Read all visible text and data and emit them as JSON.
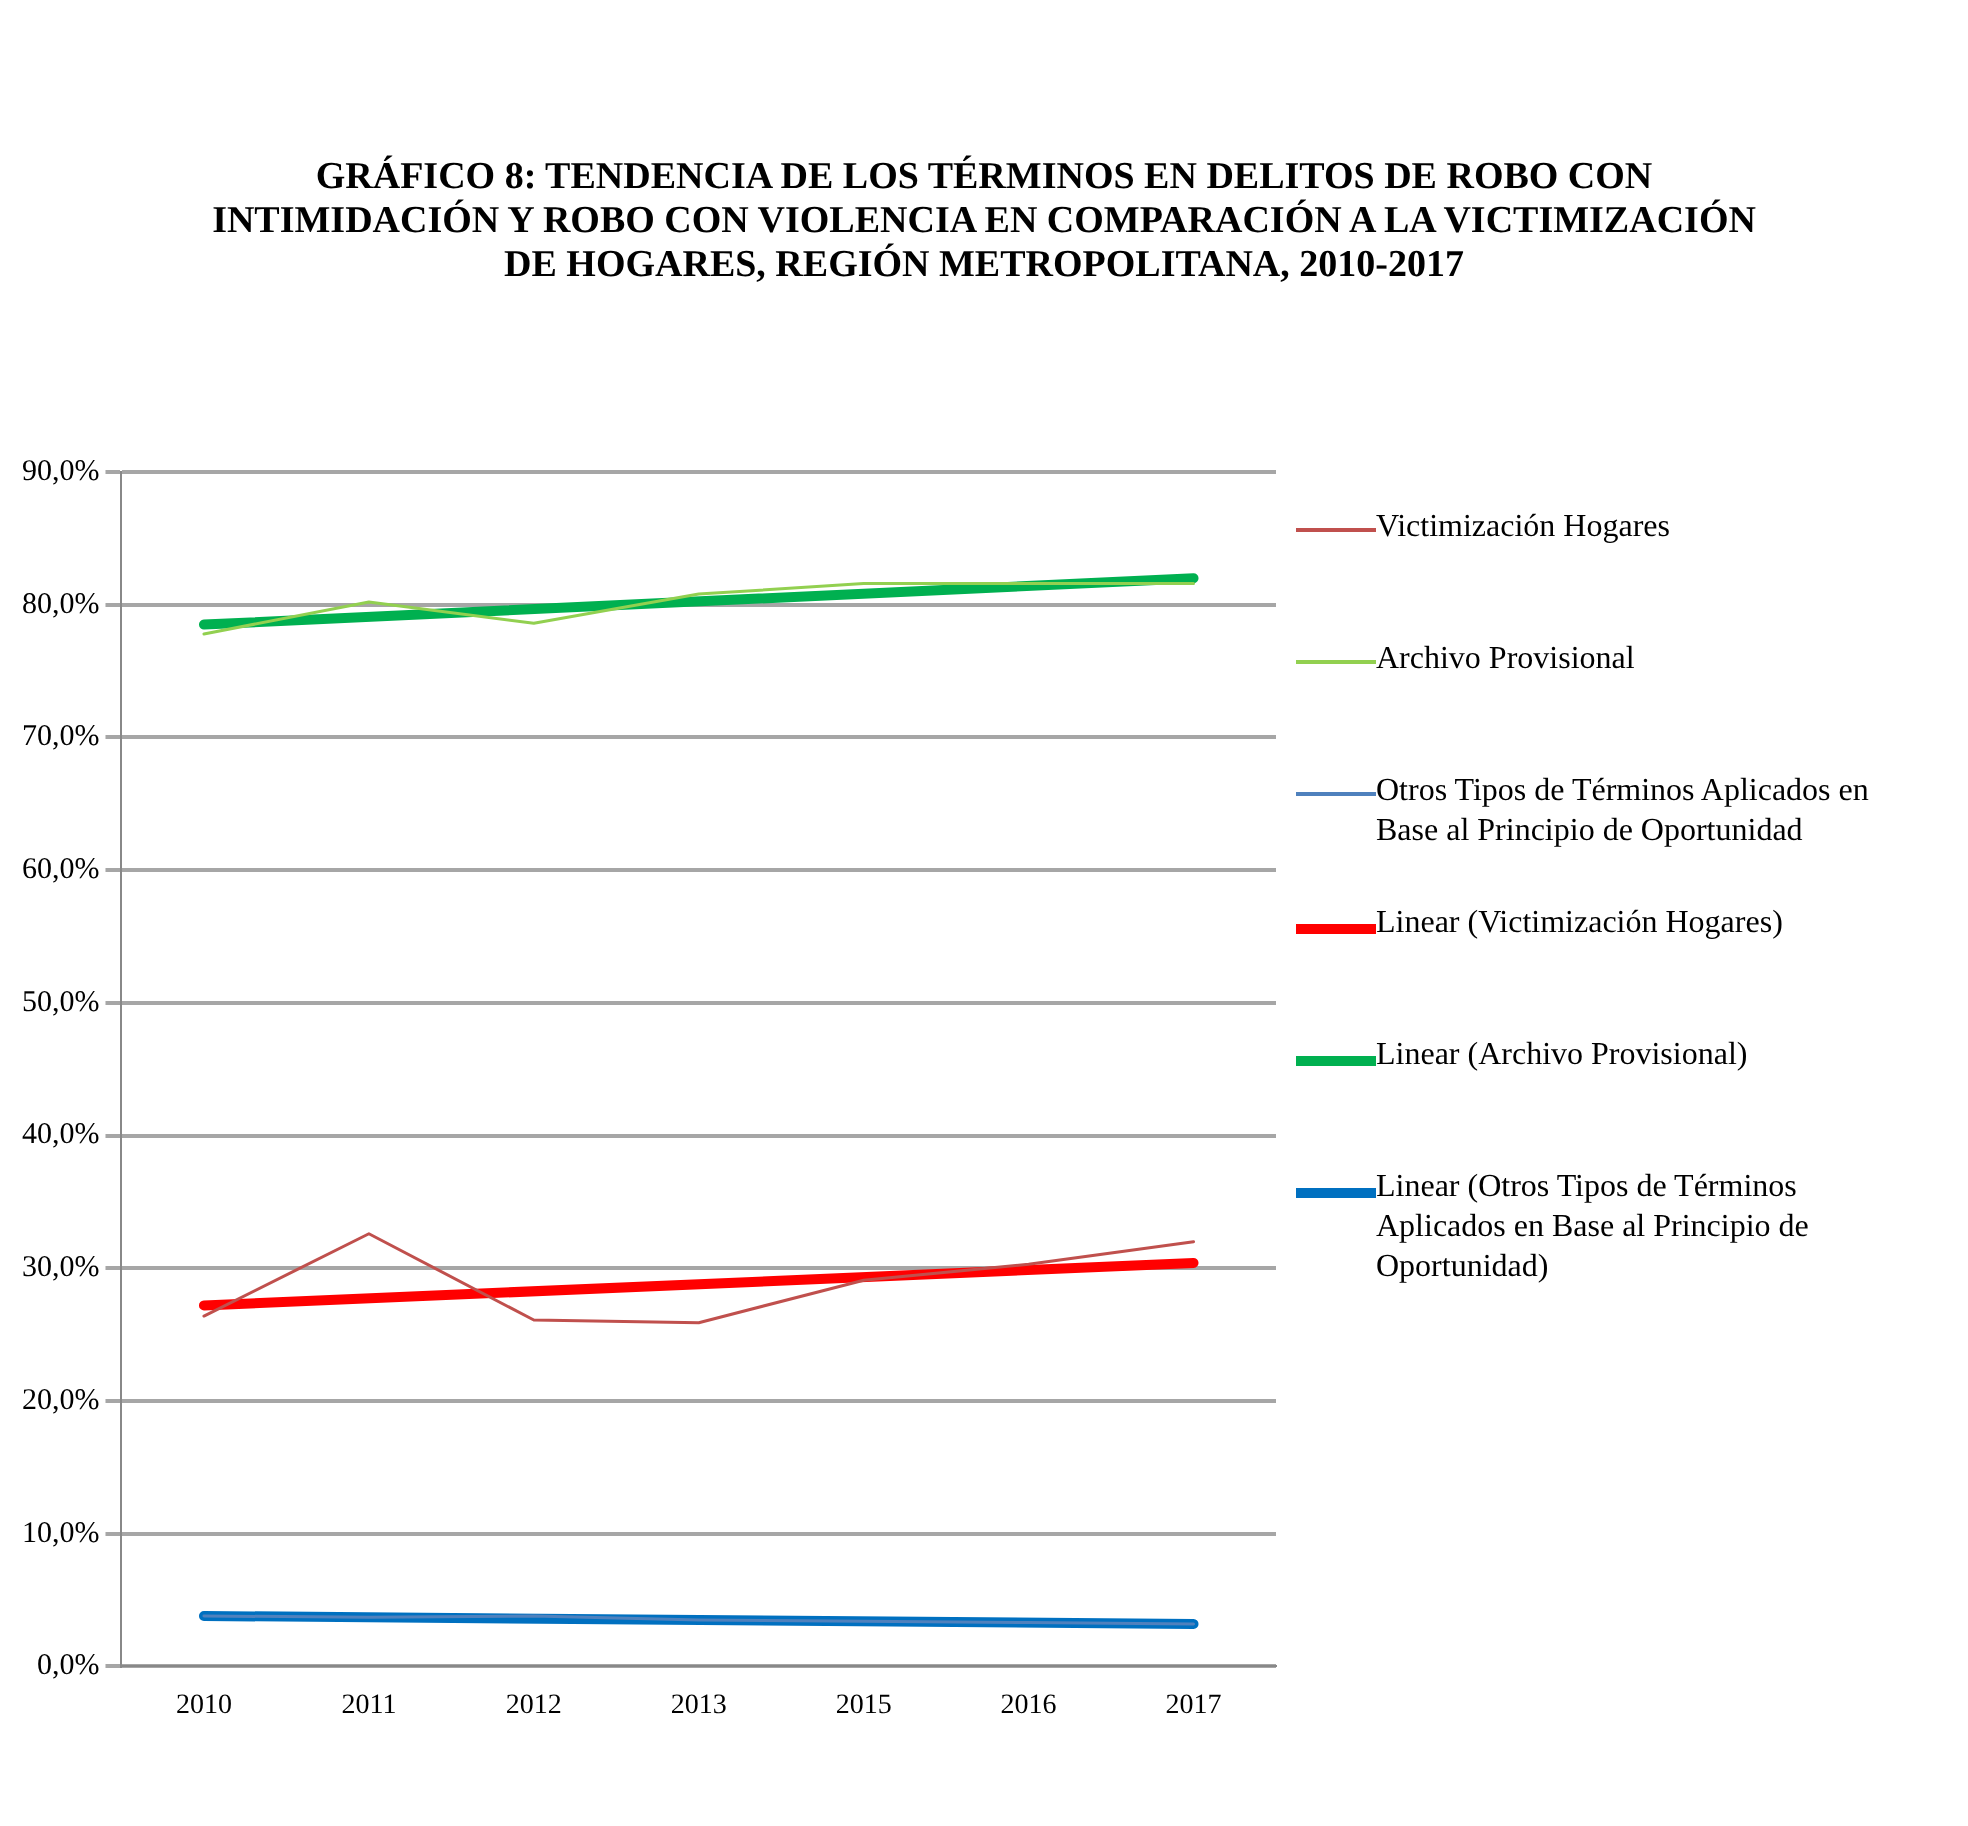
{
  "chart_data": {
    "type": "line",
    "title": "GRÁFICO 8: TENDENCIA DE LOS TÉRMINOS EN DELITOS DE ROBO CON INTIMIDACIÓN Y ROBO CON VIOLENCIA EN COMPARACIÓN A LA VICTIMIZACIÓN DE HOGARES, REGIÓN METROPOLITANA, 2010-2017",
    "categories": [
      "2010",
      "2011",
      "2012",
      "2013",
      "2015",
      "2016",
      "2017"
    ],
    "series": [
      {
        "name": "Victimización Hogares",
        "color": "#c0504d",
        "values": [
          26.4,
          32.6,
          26.1,
          25.9,
          29.1,
          30.3,
          32.0
        ]
      },
      {
        "name": "Archivo Provisional",
        "color": "#92d050",
        "values": [
          77.8,
          80.2,
          78.6,
          80.8,
          81.6,
          81.6,
          81.6
        ]
      },
      {
        "name": "Otros Tipos de Términos Aplicados en Base al Principio de Oportunidad",
        "color": "#4f81bd",
        "values": [
          3.8,
          3.7,
          3.8,
          3.5,
          3.4,
          3.3,
          3.2
        ]
      },
      {
        "name": "Linear (Victimización Hogares)",
        "color": "#ff0000",
        "type": "line",
        "values": [
          27.2,
          null,
          null,
          null,
          null,
          null,
          30.4
        ]
      },
      {
        "name": "Linear (Archivo Provisional)",
        "color": "#00b050",
        "type": "line",
        "values": [
          78.5,
          null,
          null,
          null,
          null,
          null,
          82.0
        ]
      },
      {
        "name": "Linear (Otros Tipos de Términos Aplicados en Base al Principio de Oportunidad)",
        "color": "#0070c0",
        "type": "line",
        "values": [
          3.8,
          null,
          null,
          null,
          null,
          null,
          3.2
        ]
      }
    ],
    "ylim": [
      0,
      90
    ],
    "yticks": [
      {
        "value": 0,
        "label": "0,0%"
      },
      {
        "value": 10,
        "label": "10,0%"
      },
      {
        "value": 20,
        "label": "20,0%"
      },
      {
        "value": 30,
        "label": "30,0%"
      },
      {
        "value": 40,
        "label": "40,0%"
      },
      {
        "value": 50,
        "label": "50,0%"
      },
      {
        "value": 60,
        "label": "60,0%"
      },
      {
        "value": 70,
        "label": "70,0%"
      },
      {
        "value": 80,
        "label": "80,0%"
      },
      {
        "value": 90,
        "label": "90,0%"
      }
    ],
    "grid": "y",
    "legend": "right",
    "marker": "none",
    "line_style": "solid"
  }
}
